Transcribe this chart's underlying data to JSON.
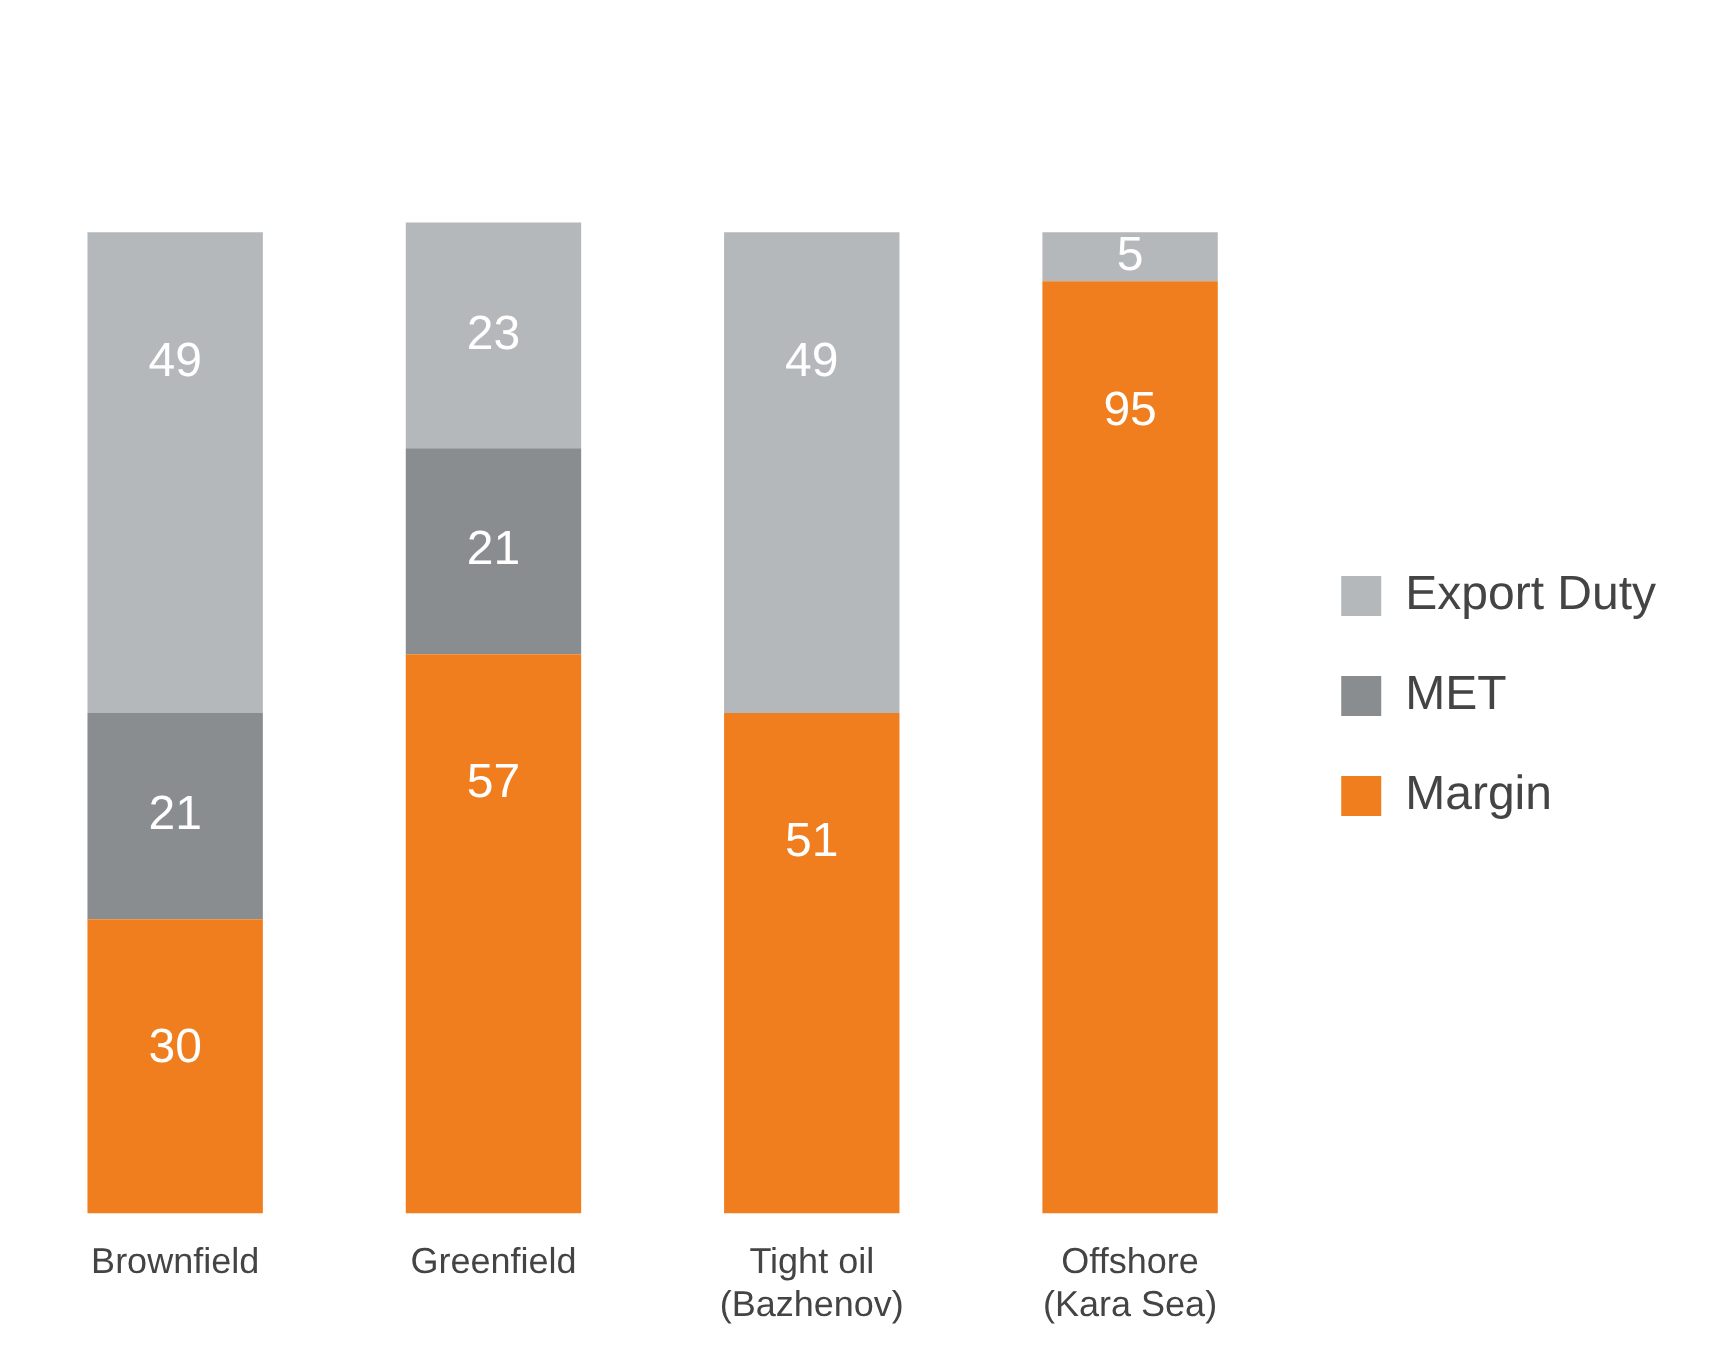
{
  "chart_data": {
    "type": "bar",
    "stacked": true,
    "categories": [
      "Brownfield",
      "Greenfield",
      "Tight oil\n(Bazhenov)",
      "Offshore\n(Kara Sea)"
    ],
    "series": [
      {
        "name": "Margin",
        "color": "#f07e1e",
        "values": [
          30,
          57,
          51,
          95
        ]
      },
      {
        "name": "MET",
        "color": "#8a8d90",
        "values": [
          21,
          21,
          null,
          null
        ]
      },
      {
        "name": "Export Duty",
        "color": "#b5b8bb",
        "values": [
          49,
          23,
          49,
          5
        ]
      }
    ],
    "data_labels": true,
    "legend": "right",
    "grid": false
  }
}
